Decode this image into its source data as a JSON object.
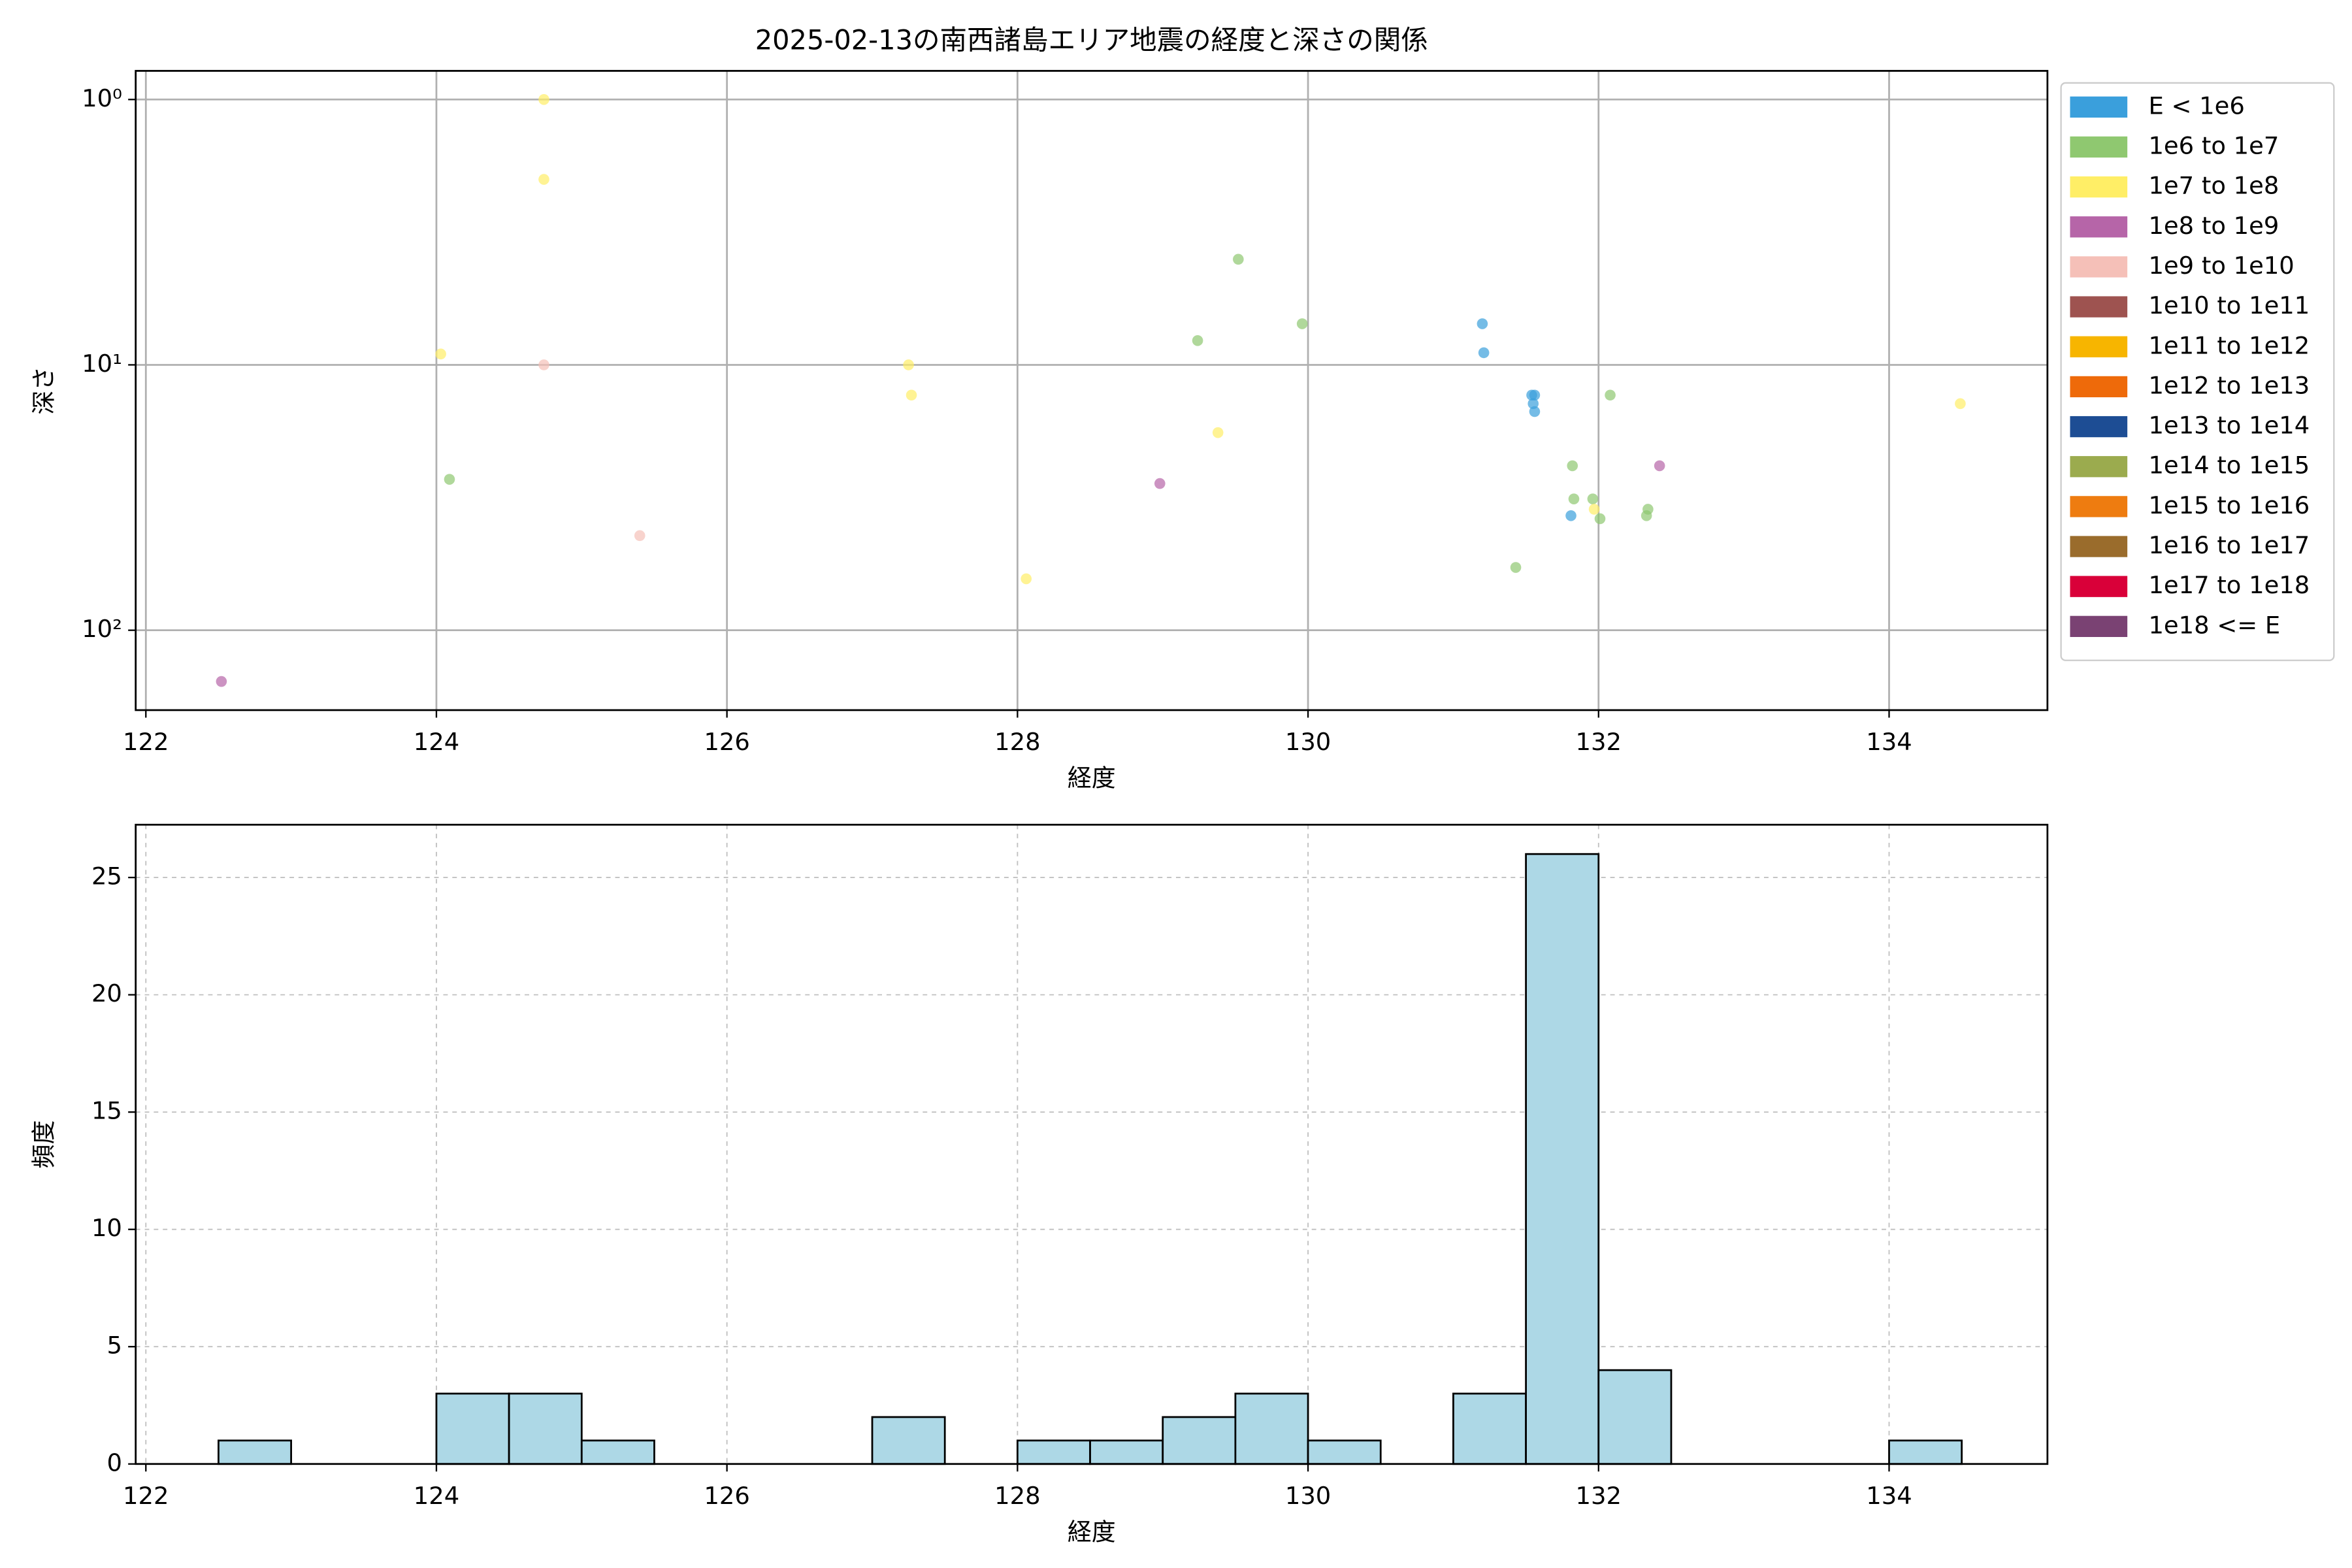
{
  "chart_data": [
    {
      "type": "scatter",
      "title": "2025-02-13の南西諸島エリア地震の経度と深さの関係",
      "x_label": "経度",
      "y_label": "深さ",
      "xlim": [
        121.93,
        135.09
      ],
      "xticks": [
        122,
        124,
        126,
        128,
        130,
        132,
        134
      ],
      "ylim": [
        0.78,
        200
      ],
      "y_log": true,
      "y_inverted": true,
      "yticks": [
        {
          "value": 1,
          "label": "10⁰"
        },
        {
          "value": 10,
          "label": "10¹"
        },
        {
          "value": 100,
          "label": "10²"
        }
      ],
      "grid": true,
      "grid_linestyle": "solid",
      "legend_position": "outside upper right",
      "marker_alpha": 0.7,
      "series": [
        {
          "name": "E < 1e6",
          "color": "#3a9fdc",
          "x": [
            131.2,
            131.21,
            131.54,
            131.56,
            131.55,
            131.56,
            131.81
          ],
          "values": [
            7.0,
            9.0,
            13,
            13,
            14,
            15,
            37
          ]
        },
        {
          "name": "1e6 to 1e7",
          "color": "#8fc870",
          "x": [
            124.09,
            129.52,
            129.24,
            129.96,
            131.82,
            132.08,
            131.83,
            131.96,
            132.01,
            132.34,
            132.33,
            131.43
          ],
          "values": [
            27,
            4.0,
            8.1,
            7.0,
            24,
            13,
            32,
            32,
            38,
            35,
            37,
            58
          ]
        },
        {
          "name": "1e7 to 1e8",
          "color": "#ffee66",
          "x": [
            124.74,
            124.74,
            124.03,
            127.25,
            127.27,
            129.38,
            128.06,
            134.49,
            131.97
          ],
          "values": [
            1.0,
            2.0,
            9.1,
            10,
            13,
            18,
            64,
            14,
            35
          ]
        },
        {
          "name": "1e8 to 1e9",
          "color": "#b665a8",
          "x": [
            122.52,
            128.98,
            132.42
          ],
          "values": [
            156,
            28,
            24
          ]
        },
        {
          "name": "1e9 to 1e10",
          "color": "#f5c0b8",
          "x": [
            124.74,
            125.4
          ],
          "values": [
            10,
            44
          ]
        },
        {
          "name": "1e10 to 1e11",
          "color": "#9e5350",
          "x": [],
          "values": []
        },
        {
          "name": "1e11 to 1e12",
          "color": "#f7b500",
          "x": [],
          "values": []
        },
        {
          "name": "1e12 to 1e13",
          "color": "#ee6a0a",
          "x": [],
          "values": []
        },
        {
          "name": "1e13 to 1e14",
          "color": "#1d4d94",
          "x": [],
          "values": []
        },
        {
          "name": "1e14 to 1e15",
          "color": "#9bab4e",
          "x": [],
          "values": []
        },
        {
          "name": "1e15 to 1e16",
          "color": "#ee7c10",
          "x": [],
          "values": []
        },
        {
          "name": "1e16 to 1e17",
          "color": "#9a6c2c",
          "x": [],
          "values": []
        },
        {
          "name": "1e17 to 1e18",
          "color": "#d90039",
          "x": [],
          "values": []
        },
        {
          "name": "1e18 <= E",
          "color": "#7a4273",
          "x": [],
          "values": []
        }
      ]
    },
    {
      "type": "histogram",
      "x_label": "経度",
      "y_label": "頻度",
      "color": "#add8e6",
      "edgecolor": "#000000",
      "xlim": [
        121.93,
        135.09
      ],
      "xticks": [
        122,
        124,
        126,
        128,
        130,
        132,
        134
      ],
      "ylim": [
        0,
        27.25
      ],
      "yticks": [
        0,
        5,
        10,
        15,
        20,
        25
      ],
      "grid": true,
      "grid_linestyle": "dashed",
      "bins": [
        122.5,
        123,
        123.5,
        124,
        124.5,
        125,
        125.5,
        126,
        126.5,
        127,
        127.5,
        128,
        128.5,
        129,
        129.5,
        130,
        130.5,
        131,
        131.5,
        132,
        132.5,
        133,
        133.5,
        134,
        134.5
      ],
      "values": [
        1,
        0,
        0,
        3,
        3,
        1,
        0,
        0,
        0,
        2,
        0,
        1,
        1,
        2,
        3,
        1,
        0,
        3,
        26,
        4,
        0,
        0,
        0,
        1
      ]
    }
  ]
}
